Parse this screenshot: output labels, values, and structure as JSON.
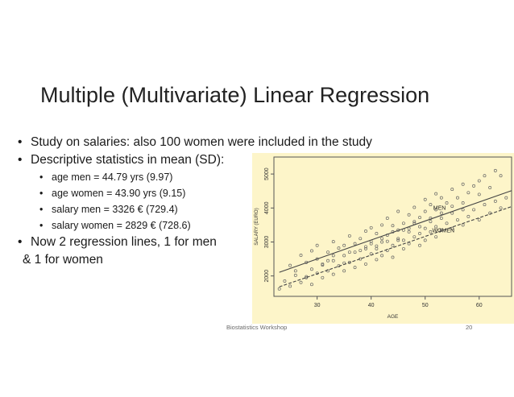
{
  "slide": {
    "title": "Multiple (Multivariate) Linear Regression",
    "bullets": [
      "Study on salaries: also 100 women were included in the study",
      "Descriptive statistics in mean (SD):"
    ],
    "sub_bullets": [
      "age men = 44.79 yrs (9.97)",
      "age women = 43.90 yrs (9.15)",
      "salary men = 3326 € (729.4)",
      "salary women = 2829 € (728.6)"
    ],
    "bullet3_line1": "Now 2 regression lines, 1 for men",
    "bullet3_line2": "& 1 for women",
    "footer_center": "Biostatistics Workshop",
    "footer_page": "20"
  },
  "chart_data": {
    "type": "scatter",
    "xlabel": "AGE",
    "ylabel": "SALARY (EURO)",
    "xlim": [
      22,
      66
    ],
    "ylim": [
      1400,
      5500
    ],
    "xticks": [
      30,
      40,
      50,
      60
    ],
    "yticks": [
      2000,
      3000,
      4000,
      5000
    ],
    "background": "#fdf5c9",
    "series": [
      {
        "name": "MEN",
        "line": {
          "style": "solid",
          "intercept": 822,
          "slope": 55.9
        },
        "points": [
          [
            25,
            2310
          ],
          [
            26,
            2150
          ],
          [
            27,
            2610
          ],
          [
            28,
            2400
          ],
          [
            28,
            1980
          ],
          [
            29,
            2740
          ],
          [
            30,
            2500
          ],
          [
            30,
            2900
          ],
          [
            31,
            2320
          ],
          [
            32,
            2700
          ],
          [
            32,
            2450
          ],
          [
            33,
            3010
          ],
          [
            33,
            2600
          ],
          [
            34,
            2820
          ],
          [
            35,
            2900
          ],
          [
            35,
            2380
          ],
          [
            36,
            3180
          ],
          [
            36,
            2700
          ],
          [
            37,
            2950
          ],
          [
            38,
            3100
          ],
          [
            38,
            2750
          ],
          [
            39,
            3320
          ],
          [
            39,
            2860
          ],
          [
            40,
            3020
          ],
          [
            40,
            3420
          ],
          [
            41,
            2880
          ],
          [
            41,
            3250
          ],
          [
            42,
            3500
          ],
          [
            42,
            3100
          ],
          [
            43,
            3020
          ],
          [
            43,
            3700
          ],
          [
            44,
            3300
          ],
          [
            44,
            3480
          ],
          [
            45,
            3050
          ],
          [
            45,
            3900
          ],
          [
            46,
            3550
          ],
          [
            46,
            3350
          ],
          [
            47,
            3800
          ],
          [
            47,
            3400
          ],
          [
            48,
            3600
          ],
          [
            48,
            4020
          ],
          [
            49,
            3720
          ],
          [
            49,
            3450
          ],
          [
            50,
            3900
          ],
          [
            50,
            4250
          ],
          [
            51,
            3700
          ],
          [
            51,
            4100
          ],
          [
            52,
            3950
          ],
          [
            52,
            4420
          ],
          [
            53,
            3850
          ],
          [
            53,
            4300
          ],
          [
            54,
            4150
          ],
          [
            55,
            4550
          ],
          [
            55,
            4050
          ],
          [
            56,
            4300
          ],
          [
            57,
            4700
          ],
          [
            57,
            4150
          ],
          [
            58,
            4450
          ],
          [
            59,
            4650
          ],
          [
            60,
            4800
          ],
          [
            60,
            4400
          ],
          [
            61,
            4950
          ],
          [
            62,
            4600
          ],
          [
            63,
            5100
          ],
          [
            64,
            4950
          ]
        ]
      },
      {
        "name": "WOMEN",
        "line": {
          "style": "dashed",
          "intercept": 418,
          "slope": 54.9
        },
        "points": [
          [
            23,
            1620
          ],
          [
            24,
            1850
          ],
          [
            25,
            1700
          ],
          [
            26,
            2020
          ],
          [
            27,
            1810
          ],
          [
            28,
            1950
          ],
          [
            29,
            2200
          ],
          [
            29,
            1750
          ],
          [
            30,
            2080
          ],
          [
            31,
            2350
          ],
          [
            31,
            1950
          ],
          [
            32,
            2150
          ],
          [
            33,
            2450
          ],
          [
            33,
            2050
          ],
          [
            34,
            2300
          ],
          [
            35,
            2600
          ],
          [
            35,
            2150
          ],
          [
            36,
            2400
          ],
          [
            37,
            2700
          ],
          [
            37,
            2250
          ],
          [
            38,
            2500
          ],
          [
            39,
            2800
          ],
          [
            39,
            2350
          ],
          [
            40,
            2650
          ],
          [
            40,
            2950
          ],
          [
            41,
            2480
          ],
          [
            41,
            2800
          ],
          [
            42,
            3000
          ],
          [
            42,
            2600
          ],
          [
            43,
            2750
          ],
          [
            43,
            3200
          ],
          [
            44,
            2900
          ],
          [
            44,
            2550
          ],
          [
            45,
            3100
          ],
          [
            45,
            3350
          ],
          [
            46,
            2800
          ],
          [
            46,
            3050
          ],
          [
            47,
            3300
          ],
          [
            47,
            2950
          ],
          [
            48,
            3150
          ],
          [
            48,
            3550
          ],
          [
            49,
            3250
          ],
          [
            49,
            2900
          ],
          [
            50,
            3400
          ],
          [
            50,
            3050
          ],
          [
            51,
            3600
          ],
          [
            51,
            3300
          ],
          [
            52,
            3450
          ],
          [
            52,
            3150
          ],
          [
            53,
            3700
          ],
          [
            53,
            3350
          ],
          [
            54,
            3550
          ],
          [
            55,
            3850
          ],
          [
            55,
            3400
          ],
          [
            56,
            3650
          ],
          [
            57,
            3950
          ],
          [
            57,
            3500
          ],
          [
            58,
            3750
          ],
          [
            59,
            3950
          ],
          [
            60,
            3650
          ],
          [
            61,
            4100
          ],
          [
            62,
            3850
          ],
          [
            63,
            4200
          ],
          [
            64,
            4000
          ],
          [
            65,
            4300
          ]
        ]
      }
    ]
  }
}
